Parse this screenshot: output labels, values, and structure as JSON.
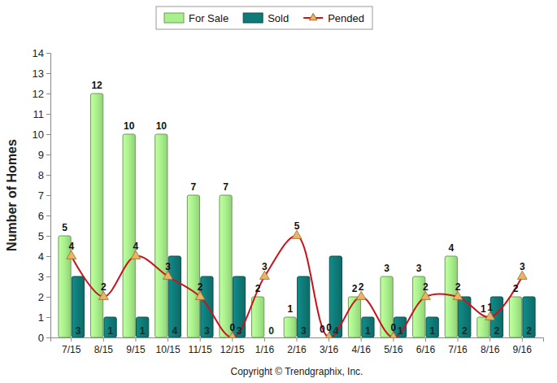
{
  "chart_data": {
    "type": "bar",
    "y_label": "Number of Homes",
    "annotations": [
      "Copyright © Trendgraphix, Inc."
    ],
    "categories": [
      "7/15",
      "8/15",
      "9/15",
      "10/15",
      "11/15",
      "12/15",
      "1/16",
      "2/16",
      "3/16",
      "4/16",
      "5/16",
      "6/16",
      "7/16",
      "8/16",
      "9/16"
    ],
    "series": [
      {
        "name": "For Sale",
        "type": "bar",
        "color": "#a8f08c",
        "values": [
          5,
          12,
          10,
          10,
          7,
          7,
          2,
          1,
          0,
          2,
          3,
          3,
          4,
          1,
          2
        ]
      },
      {
        "name": "Sold",
        "type": "bar",
        "color": "#0f7b78",
        "values": [
          3,
          1,
          1,
          4,
          3,
          3,
          0,
          3,
          4,
          1,
          1,
          1,
          2,
          2,
          2
        ]
      },
      {
        "name": "Pended",
        "type": "line",
        "color": "#c8141c",
        "marker": "triangle",
        "line_style": "smooth",
        "values": [
          4,
          2,
          4,
          3,
          2,
          0,
          3,
          5,
          0,
          2,
          0,
          2,
          2,
          1,
          3
        ]
      }
    ],
    "ylim": [
      0,
      14
    ],
    "yticks": [
      0,
      1,
      2,
      3,
      4,
      5,
      6,
      7,
      8,
      9,
      10,
      11,
      12,
      13,
      14
    ],
    "grid": false,
    "legend": "top",
    "data_labels": true
  }
}
